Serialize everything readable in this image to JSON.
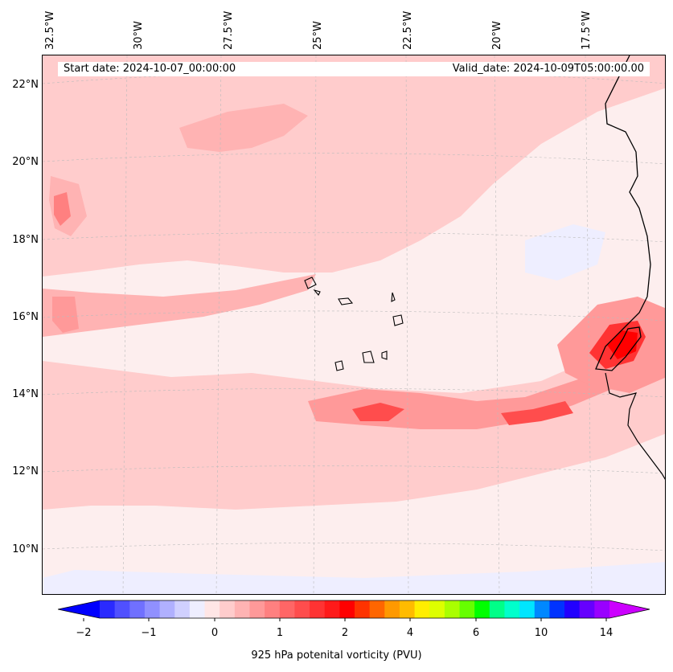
{
  "map": {
    "region": "Eastern tropical Atlantic / West African coast",
    "longitude_labels": [
      "32.5°W",
      "30°W",
      "27.5°W",
      "25°W",
      "22.5°W",
      "20°W",
      "17.5°W"
    ],
    "latitude_labels": [
      "22°N",
      "20°N",
      "18°N",
      "16°N",
      "14°N",
      "12°N",
      "10°N"
    ],
    "start_date": "Start date: 2024-10-07_00:00:00",
    "valid_date": "Valid_date: 2024-10-09T05:00:00.00",
    "gridlines": true,
    "coastlines": true
  },
  "colorbar": {
    "title": "925 hPa potenital vorticity (PVU)",
    "tick_labels": [
      "−2",
      "−1",
      "0",
      "1",
      "2",
      "4",
      "6",
      "10",
      "14"
    ],
    "colors": [
      "#0000ff",
      "#2a2aff",
      "#5050ff",
      "#7070ff",
      "#9090ff",
      "#b0b0ff",
      "#d0d0ff",
      "#eeeeff",
      "#ffe6e6",
      "#ffcccc",
      "#ffb3b3",
      "#ff9999",
      "#ff8080",
      "#ff6666",
      "#ff4d4d",
      "#ff3333",
      "#ff1a1a",
      "#ff0000",
      "#ff3300",
      "#ff6600",
      "#ff9900",
      "#ffbb00",
      "#ffee00",
      "#ddff00",
      "#aaff00",
      "#66ff00",
      "#00ff00",
      "#00ff88",
      "#00ffcc",
      "#00e5ff",
      "#0088ff",
      "#0033ff",
      "#2200ff",
      "#6600ff",
      "#9900ff",
      "#cc00ff"
    ],
    "extend": "both"
  },
  "colors": {
    "background_field": "#fdeeee",
    "weak_positive": "#ffcccc",
    "moderate_positive": "#ff9999",
    "strong_positive": "#ff3333",
    "weak_negative": "#eeeeff"
  }
}
